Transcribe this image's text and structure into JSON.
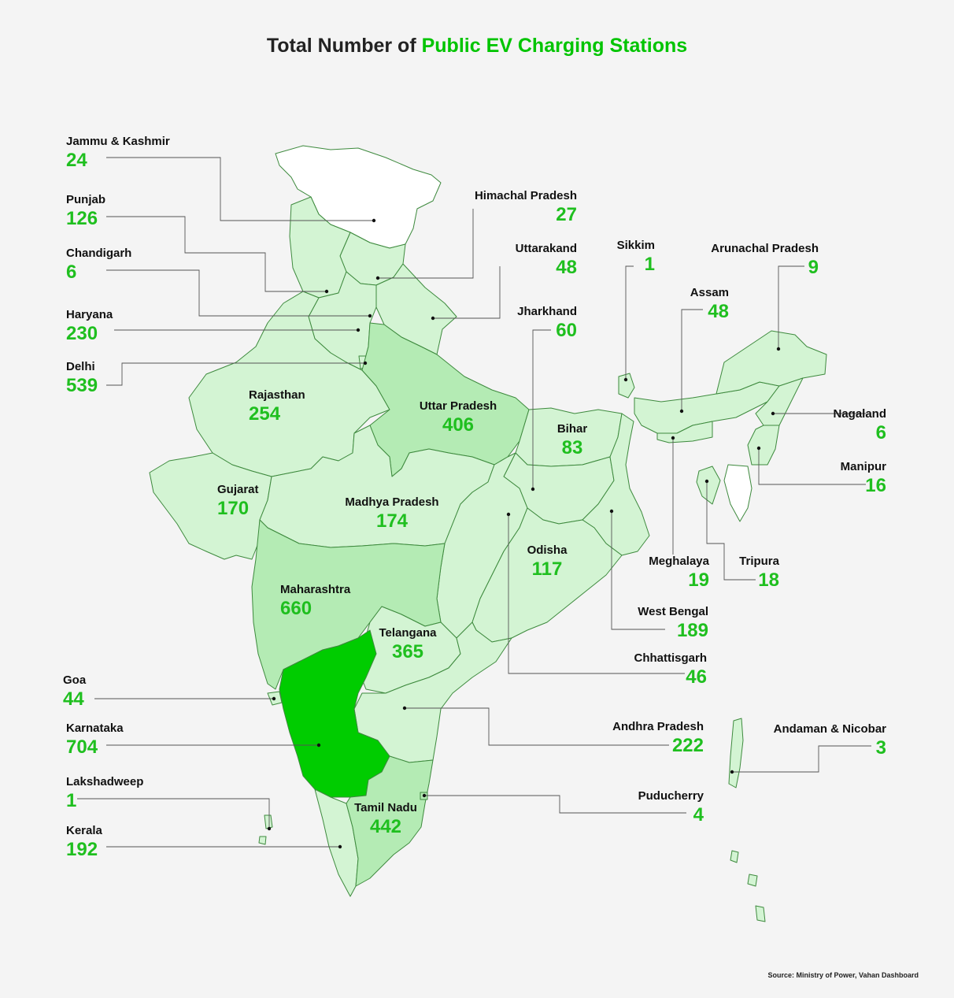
{
  "title": {
    "prefix": "Total Number of ",
    "highlight": "Public EV Charging Stations"
  },
  "colors": {
    "accent": "#1fbf1f",
    "low": "#d3f4d3",
    "medium": "#b4ebb4",
    "high": "#00cc00",
    "none": "#ffffff",
    "border": "#3e8a3e"
  },
  "states": {
    "jk": {
      "name": "Jammu & Kashmir",
      "value": "24"
    },
    "punjab": {
      "name": "Punjab",
      "value": "126"
    },
    "chd": {
      "name": "Chandigarh",
      "value": "6"
    },
    "har": {
      "name": "Haryana",
      "value": "230"
    },
    "delhi": {
      "name": "Delhi",
      "value": "539"
    },
    "raj": {
      "name": "Rajasthan",
      "value": "254"
    },
    "guj": {
      "name": "Gujarat",
      "value": "170"
    },
    "mp": {
      "name": "Madhya Pradesh",
      "value": "174"
    },
    "mah": {
      "name": "Maharashtra",
      "value": "660"
    },
    "goa": {
      "name": "Goa",
      "value": "44"
    },
    "kar": {
      "name": "Karnataka",
      "value": "704"
    },
    "lak": {
      "name": "Lakshadweep",
      "value": "1"
    },
    "ker": {
      "name": "Kerala",
      "value": "192"
    },
    "tn": {
      "name": "Tamil Nadu",
      "value": "442"
    },
    "tel": {
      "name": "Telangana",
      "value": "365"
    },
    "up": {
      "name": "Uttar Pradesh",
      "value": "406"
    },
    "bihar": {
      "name": "Bihar",
      "value": "83"
    },
    "odi": {
      "name": "Odisha",
      "value": "117"
    },
    "hp": {
      "name": "Himachal Pradesh",
      "value": "27"
    },
    "uk": {
      "name": "Uttarakand",
      "value": "48"
    },
    "jh": {
      "name": "Jharkhand",
      "value": "60"
    },
    "sik": {
      "name": "Sikkim",
      "value": "1"
    },
    "aru": {
      "name": "Arunachal Pradesh",
      "value": "9"
    },
    "assam": {
      "name": "Assam",
      "value": "48"
    },
    "naga": {
      "name": "Nagaland",
      "value": "6"
    },
    "mani": {
      "name": "Manipur",
      "value": "16"
    },
    "megh": {
      "name": "Meghalaya",
      "value": "19"
    },
    "tri": {
      "name": "Tripura",
      "value": "18"
    },
    "wb": {
      "name": "West Bengal",
      "value": "189"
    },
    "chh": {
      "name": "Chhattisgarh",
      "value": "46"
    },
    "ap": {
      "name": "Andhra Pradesh",
      "value": "222"
    },
    "andaman": {
      "name": "Andaman & Nicobar",
      "value": "3"
    },
    "pud": {
      "name": "Puducherry",
      "value": "4"
    }
  },
  "source": "Source: Ministry of Power, Vahan Dashboard"
}
